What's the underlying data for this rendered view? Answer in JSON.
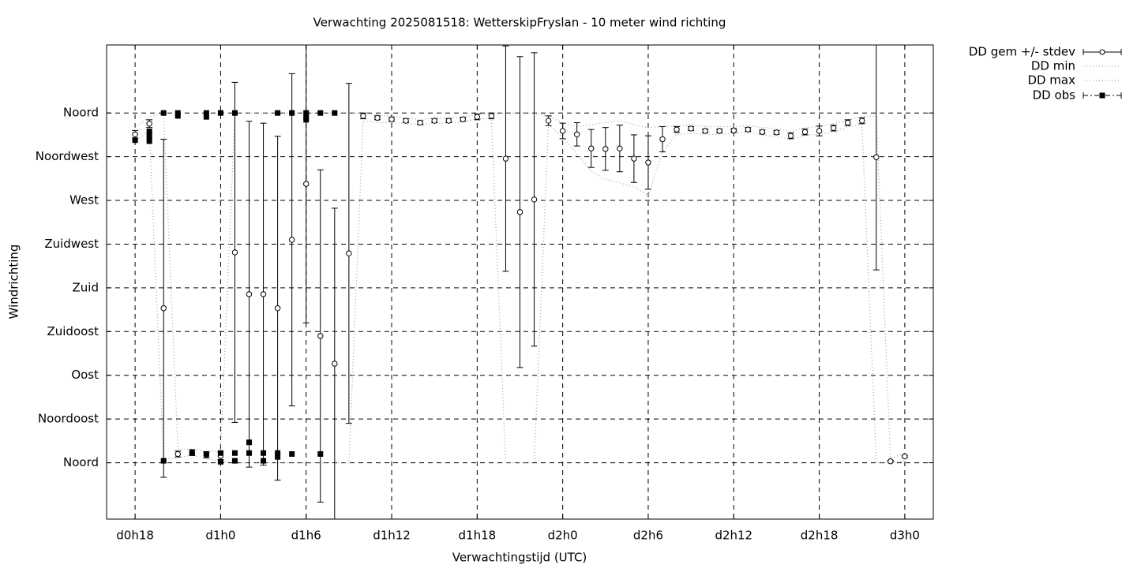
{
  "chart_data": {
    "type": "line",
    "title": "Verwachting 2025081518: WetterskipFryslan - 10 meter wind richting",
    "x_label": "Verwachtingstijd (UTC)",
    "y_label": "Windrichting",
    "x": [
      18,
      19,
      20,
      21,
      22,
      23,
      24,
      25,
      26,
      27,
      28,
      29,
      30,
      31,
      32,
      33,
      34,
      35,
      36,
      37,
      38,
      39,
      40,
      41,
      42,
      43,
      44,
      45,
      46,
      47,
      48,
      49,
      50,
      51,
      52,
      53,
      54,
      55,
      56,
      57,
      58,
      59,
      60,
      61,
      62,
      63,
      64,
      65,
      66,
      67,
      68,
      69,
      70,
      71,
      72
    ],
    "series": [
      {
        "name": "DD gem +/- stdev",
        "color": "#000000",
        "values": [
          338,
          349,
          159,
          9,
          10.5,
          8,
          7,
          216.5,
          173.5,
          173.5,
          159,
          229.5,
          287,
          130.5,
          102,
          215.5,
          357,
          355,
          353.5,
          352,
          350,
          352,
          352,
          353.5,
          356,
          357,
          313,
          258,
          271,
          352,
          341.5,
          338,
          323.5,
          323,
          323.5,
          313,
          309,
          333,
          343,
          344,
          341.5,
          341.5,
          342,
          343,
          340.5,
          340,
          336.5,
          340.5,
          341.5,
          344.5,
          350,
          352,
          314.5,
          1.5,
          6.5
        ],
        "errors": [
          4,
          4,
          174,
          3,
          3,
          3,
          4,
          175,
          178,
          176,
          177,
          171,
          143,
          171,
          160,
          175,
          3,
          2,
          2,
          2,
          2,
          2,
          2,
          2,
          3,
          3,
          116,
          160,
          151,
          5,
          8,
          12,
          19.5,
          22,
          24,
          24.5,
          27.5,
          13,
          3,
          2,
          2,
          2,
          2,
          2,
          2,
          2,
          3,
          3,
          5,
          3,
          3,
          3,
          116,
          1,
          1
        ]
      },
      {
        "name": "DD min",
        "color": "#a0a0a0",
        "values": [
          330,
          342,
          3,
          5,
          8,
          4,
          2,
          0,
          0,
          0,
          0,
          0,
          0,
          0,
          0,
          0,
          352,
          350,
          350,
          349,
          348,
          349,
          350,
          351,
          354,
          354,
          0,
          0,
          0,
          348,
          335,
          318,
          300,
          292,
          288,
          284,
          275,
          320,
          338,
          339,
          338,
          338,
          339,
          340,
          337,
          336,
          333,
          337,
          338,
          340,
          346,
          348,
          0,
          0,
          2
        ]
      },
      {
        "name": "DD max",
        "color": "#a0a0a0",
        "values": [
          345,
          356,
          360,
          14,
          14,
          12,
          12,
          360,
          360,
          360,
          360,
          360,
          360,
          360,
          360,
          360,
          360,
          358,
          357,
          355,
          353,
          355,
          355,
          356,
          358,
          359,
          360,
          360,
          360,
          357,
          350,
          346,
          348,
          350,
          352,
          348,
          345,
          346,
          347,
          348,
          346,
          346,
          346,
          347,
          345,
          344,
          341,
          345,
          346,
          349,
          353,
          356,
          357,
          4,
          10
        ]
      },
      {
        "name": "DD obs",
        "color": "#000000",
        "x": [
          18,
          19,
          19,
          19,
          19,
          20,
          20,
          21,
          21,
          22,
          23,
          23,
          23,
          24,
          24,
          24,
          25,
          25,
          25,
          26,
          26,
          27,
          27,
          28,
          28,
          28,
          29,
          29,
          30,
          30,
          30,
          31,
          31,
          32
        ],
        "values": [
          332,
          341,
          338,
          334,
          331,
          360,
          2,
          360,
          357,
          10,
          360,
          356,
          9,
          360,
          10,
          1,
          360,
          10,
          2,
          21,
          10,
          10,
          2,
          360,
          10,
          6,
          360,
          9,
          360,
          356,
          353,
          360,
          9,
          360
        ]
      }
    ],
    "xlim": [
      16,
      74
    ],
    "ylim": [
      -58,
      430
    ],
    "xticks": [
      {
        "value": 18,
        "label": "d0h18"
      },
      {
        "value": 24,
        "label": "d1h0"
      },
      {
        "value": 30,
        "label": "d1h6"
      },
      {
        "value": 36,
        "label": "d1h12"
      },
      {
        "value": 42,
        "label": "d1h18"
      },
      {
        "value": 48,
        "label": "d2h0"
      },
      {
        "value": 54,
        "label": "d2h6"
      },
      {
        "value": 60,
        "label": "d2h12"
      },
      {
        "value": 66,
        "label": "d2h18"
      },
      {
        "value": 72,
        "label": "d3h0"
      }
    ],
    "yticks": [
      {
        "value": 0,
        "label": "Noord"
      },
      {
        "value": 45,
        "label": "Noordoost"
      },
      {
        "value": 90,
        "label": "Oost"
      },
      {
        "value": 135,
        "label": "Zuidoost"
      },
      {
        "value": 180,
        "label": "Zuid"
      },
      {
        "value": 225,
        "label": "Zuidwest"
      },
      {
        "value": 270,
        "label": "West"
      },
      {
        "value": 315,
        "label": "Noordwest"
      },
      {
        "value": 360,
        "label": "Noord"
      }
    ],
    "grid": true,
    "legend": "right"
  }
}
